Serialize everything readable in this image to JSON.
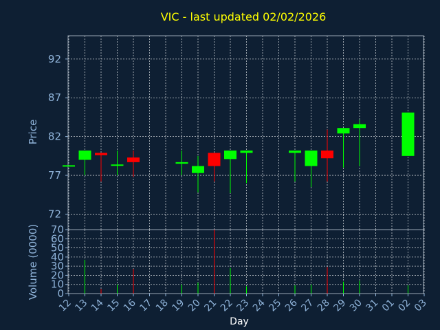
{
  "chart_data": {
    "type": "candlestick",
    "title": "VIC - last updated 02/02/2026",
    "xlabel": "Day",
    "colors": {
      "background": "#0e1f33",
      "title": "#ffff00",
      "axis_text": "#8fb3d9",
      "label": "#ffffff",
      "grid": "#ffffff",
      "up": "#00ff00",
      "down": "#ff0000"
    },
    "x_ticks": [
      "12",
      "13",
      "14",
      "15",
      "16",
      "17",
      "18",
      "19",
      "20",
      "21",
      "22",
      "23",
      "24",
      "25",
      "26",
      "27",
      "28",
      "29",
      "30",
      "31",
      "01",
      "02",
      "03"
    ],
    "price_panel": {
      "ylabel": "Price",
      "ylim": [
        70,
        95
      ],
      "y_ticks": [
        72,
        77,
        82,
        87,
        92
      ],
      "candles": [
        {
          "x": 0,
          "open": 78.3,
          "high": 78.3,
          "low": 78.3,
          "close": 78.3
        },
        {
          "x": 1,
          "open": 79.0,
          "high": 80.2,
          "low": 77.0,
          "close": 80.2
        },
        {
          "x": 2,
          "open": 79.9,
          "high": 79.9,
          "low": 76.2,
          "close": 79.6
        },
        {
          "x": 3,
          "open": 78.4,
          "high": 80.2,
          "low": 77.0,
          "close": 78.4
        },
        {
          "x": 4,
          "open": 79.3,
          "high": 80.2,
          "low": 76.8,
          "close": 78.7
        },
        {
          "x": 7,
          "open": 78.5,
          "high": 80.2,
          "low": 77.0,
          "close": 78.7
        },
        {
          "x": 8,
          "open": 77.3,
          "high": 79.5,
          "low": 74.8,
          "close": 78.2
        },
        {
          "x": 9,
          "open": 79.9,
          "high": 79.9,
          "low": 76.2,
          "close": 78.2
        },
        {
          "x": 10,
          "open": 79.1,
          "high": 80.2,
          "low": 74.7,
          "close": 80.2
        },
        {
          "x": 11,
          "open": 79.9,
          "high": 80.2,
          "low": 76.0,
          "close": 80.2
        },
        {
          "x": 14,
          "open": 79.9,
          "high": 80.2,
          "low": 76.2,
          "close": 80.2
        },
        {
          "x": 15,
          "open": 78.2,
          "high": 80.2,
          "low": 75.5,
          "close": 80.2
        },
        {
          "x": 16,
          "open": 80.2,
          "high": 82.9,
          "low": 76.2,
          "close": 79.2
        },
        {
          "x": 17,
          "open": 82.4,
          "high": 83.1,
          "low": 78.0,
          "close": 83.1
        },
        {
          "x": 18,
          "open": 83.1,
          "high": 84.2,
          "low": 78.2,
          "close": 83.6
        },
        {
          "x": 21,
          "open": 79.5,
          "high": 85.1,
          "low": 79.5,
          "close": 85.1
        }
      ]
    },
    "volume_panel": {
      "ylabel": "Volume (0000)",
      "ylim": [
        0,
        70
      ],
      "y_ticks": [
        0,
        10,
        20,
        30,
        40,
        50,
        60,
        70
      ],
      "bars": [
        {
          "x": 1,
          "value": 37,
          "dir": "up"
        },
        {
          "x": 2,
          "value": 5,
          "dir": "down"
        },
        {
          "x": 3,
          "value": 10,
          "dir": "up"
        },
        {
          "x": 4,
          "value": 27,
          "dir": "down"
        },
        {
          "x": 7,
          "value": 10,
          "dir": "up"
        },
        {
          "x": 8,
          "value": 12,
          "dir": "up"
        },
        {
          "x": 9,
          "value": 70,
          "dir": "down"
        },
        {
          "x": 10,
          "value": 28,
          "dir": "up"
        },
        {
          "x": 11,
          "value": 8,
          "dir": "up"
        },
        {
          "x": 14,
          "value": 9,
          "dir": "up"
        },
        {
          "x": 15,
          "value": 10,
          "dir": "up"
        },
        {
          "x": 16,
          "value": 29,
          "dir": "down"
        },
        {
          "x": 17,
          "value": 13,
          "dir": "up"
        },
        {
          "x": 18,
          "value": 14,
          "dir": "up"
        },
        {
          "x": 21,
          "value": 9,
          "dir": "up"
        }
      ]
    }
  }
}
